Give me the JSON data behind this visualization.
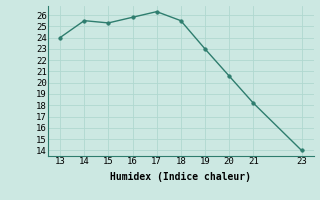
{
  "x": [
    13,
    14,
    15,
    16,
    17,
    18,
    19,
    20,
    21,
    23
  ],
  "y": [
    24,
    25.5,
    25.3,
    25.8,
    26.3,
    25.5,
    23.0,
    20.6,
    18.2,
    14.0
  ],
  "xlabel": "Humidex (Indice chaleur)",
  "xlim": [
    12.5,
    23.5
  ],
  "ylim": [
    13.5,
    26.8
  ],
  "yticks": [
    14,
    15,
    16,
    17,
    18,
    19,
    20,
    21,
    22,
    23,
    24,
    25,
    26
  ],
  "xticks": [
    13,
    14,
    15,
    16,
    17,
    18,
    19,
    20,
    21,
    23
  ],
  "line_color": "#2e7d6e",
  "marker_color": "#2e7d6e",
  "bg_color": "#cce8e2",
  "grid_color": "#b0d8d0",
  "xlabel_fontsize": 7,
  "tick_fontsize": 6.5
}
